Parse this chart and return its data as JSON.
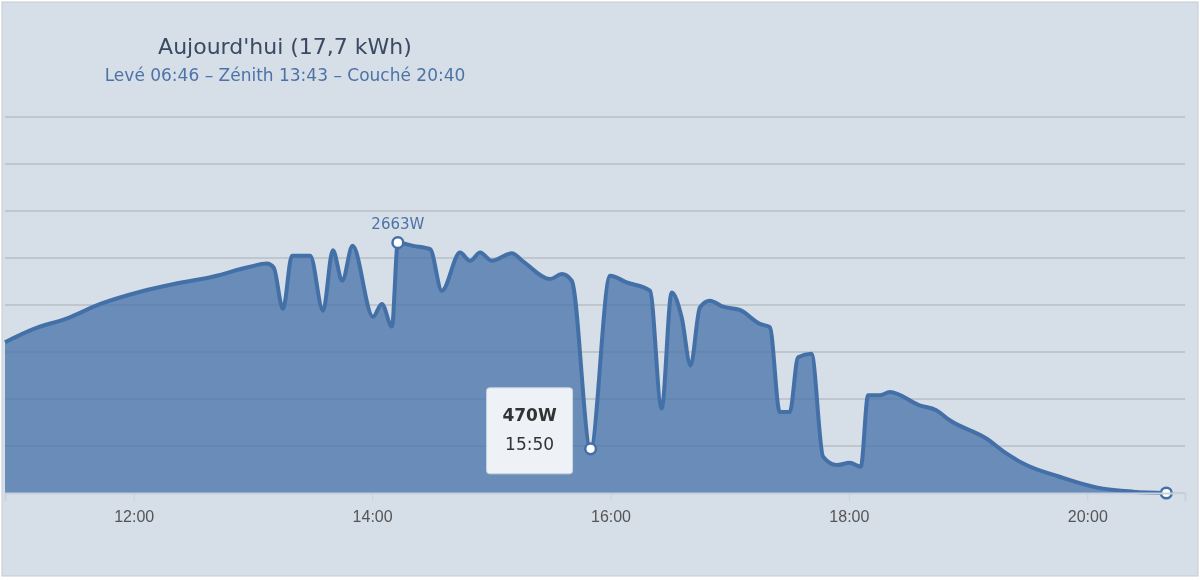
{
  "chart_data": {
    "type": "area",
    "title": "Aujourd'hui (17,7 kWh)",
    "subtitle": "Levé 06:46 – Zénith 13:43 – Couché 20:40",
    "xlim": [
      10.92,
      20.82
    ],
    "xticks": [
      {
        "value": 12,
        "label": "12:00"
      },
      {
        "value": 14,
        "label": "14:00"
      },
      {
        "value": 16,
        "label": "16:00"
      },
      {
        "value": 18,
        "label": "18:00"
      },
      {
        "value": 20,
        "label": "20:00"
      }
    ],
    "ylim": [
      0,
      4000
    ],
    "yticks": [
      {
        "value": 0,
        "label": null
      },
      {
        "value": 500,
        "label": null
      },
      {
        "value": 1000,
        "label": null
      },
      {
        "value": 1500,
        "label": null
      },
      {
        "value": 2000,
        "label": null
      },
      {
        "value": 2500,
        "label": null
      },
      {
        "value": 3000,
        "label": null
      },
      {
        "value": 3500,
        "label": null
      },
      {
        "value": 4000,
        "label": null
      }
    ],
    "tick_labels": "x",
    "grid": "y",
    "series": [
      {
        "color": "#4470a8",
        "x": [
          10.92,
          11.162,
          11.442,
          11.721,
          12.056,
          12.338,
          12.671,
          12.95,
          13.118,
          13.174,
          13.252,
          13.328,
          13.481,
          13.588,
          13.671,
          13.749,
          13.836,
          14.007,
          14.082,
          14.166,
          14.216,
          14.347,
          14.487,
          14.585,
          14.738,
          14.822,
          14.906,
          15.004,
          15.172,
          15.269,
          15.493,
          15.591,
          15.675,
          15.833,
          15.996,
          16.136,
          16.331,
          16.429,
          16.513,
          16.597,
          16.672,
          16.75,
          16.834,
          16.946,
          17.085,
          17.253,
          17.337,
          17.42,
          17.504,
          17.574,
          17.686,
          17.784,
          17.896,
          18.008,
          18.1,
          18.161,
          18.259,
          18.343,
          18.593,
          18.733,
          18.846,
          19.153,
          19.321,
          19.489,
          19.768,
          20.076,
          20.383,
          20.663
        ],
        "values": [
          1604,
          1746,
          1858,
          2011,
          2141,
          2223,
          2303,
          2399,
          2441,
          2399,
          1958,
          2523,
          2523,
          1940,
          2583,
          2258,
          2629,
          1876,
          2011,
          1770,
          2663,
          2629,
          2594,
          2152,
          2558,
          2470,
          2558,
          2470,
          2551,
          2462,
          2276,
          2329,
          2258,
          470,
          2311,
          2240,
          2152,
          898,
          2134,
          1869,
          1357,
          1975,
          2046,
          1982,
          1947,
          1799,
          1763,
          862,
          862,
          1445,
          1481,
          385,
          297,
          321,
          279,
          1039,
          1039,
          1074,
          933,
          880,
          774,
          580,
          421,
          297,
          173,
          60,
          14,
          0
        ]
      },
      {
        "type": "scatter",
        "color": "#4470a8",
        "marker": "circle",
        "x": [
          14.216,
          15.833,
          20.663
        ],
        "values": [
          2663,
          470,
          0
        ],
        "value_labels": [
          "2663W",
          null,
          null
        ]
      }
    ],
    "annotations": [
      {
        "text": "470W",
        "x": 15.833,
        "y": 470
      },
      {
        "text": "15:50",
        "x": 15.833,
        "y": 470
      }
    ]
  }
}
